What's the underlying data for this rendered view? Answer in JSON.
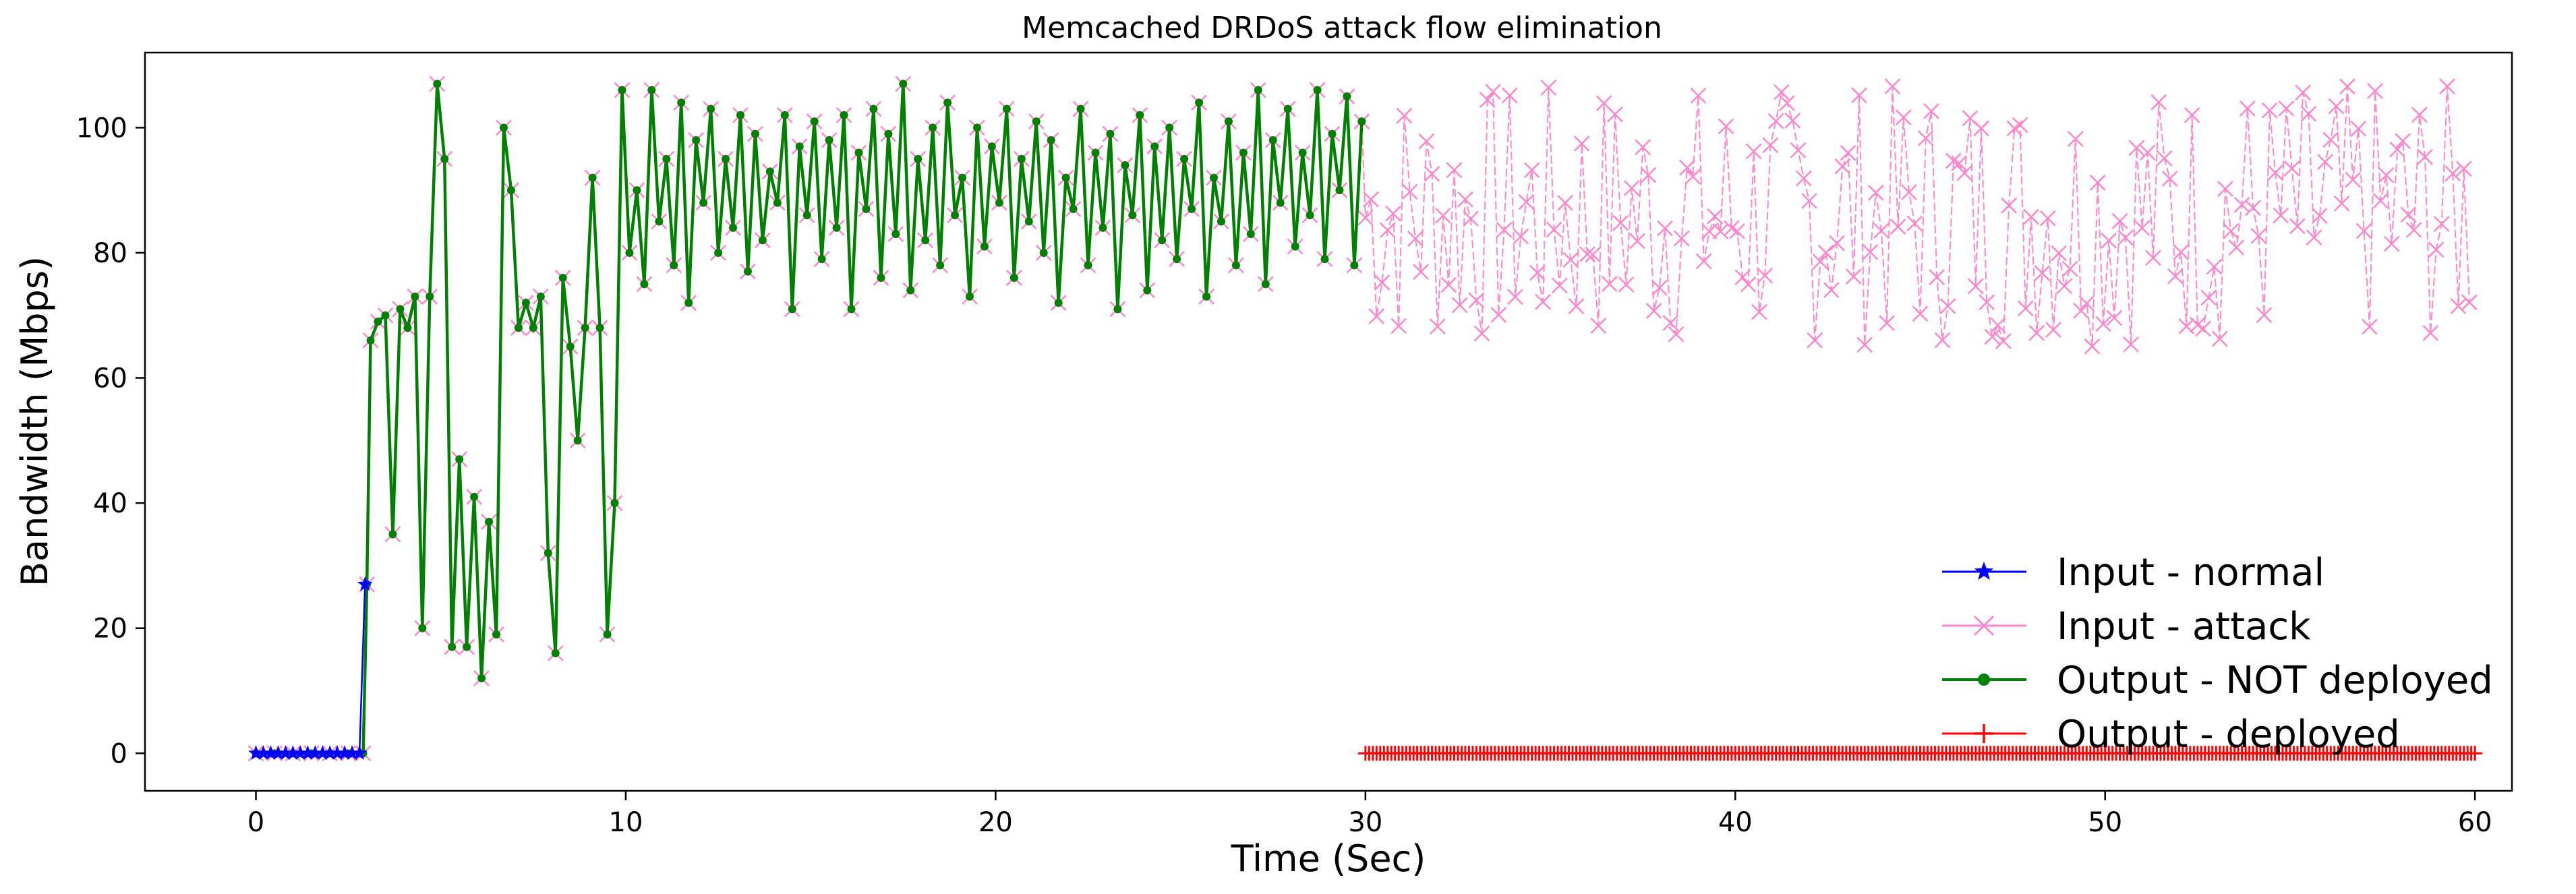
{
  "chart_data": {
    "type": "line",
    "title": "Memcached DRDoS attack flow elimination",
    "xlabel": "Time (Sec)",
    "ylabel": "Bandwidth (Mbps)",
    "xlim": [
      -3,
      61
    ],
    "ylim": [
      -6,
      112
    ],
    "xticks": [
      0,
      10,
      20,
      30,
      40,
      50,
      60
    ],
    "yticks": [
      0,
      20,
      40,
      60,
      80,
      100
    ],
    "legend_position": "lower-right",
    "series": [
      {
        "name": "Input - normal",
        "color": "#0000ff",
        "marker": "star",
        "description": "0 Mbps from t=0 to ~2.8 s, then a single point at ~27 Mbps at t=3",
        "points": [
          [
            0,
            0
          ],
          [
            0.2,
            0
          ],
          [
            0.4,
            0
          ],
          [
            0.6,
            0
          ],
          [
            0.8,
            0
          ],
          [
            1.0,
            0
          ],
          [
            1.2,
            0
          ],
          [
            1.4,
            0
          ],
          [
            1.6,
            0
          ],
          [
            1.8,
            0
          ],
          [
            2.0,
            0
          ],
          [
            2.2,
            0
          ],
          [
            2.4,
            0
          ],
          [
            2.6,
            0
          ],
          [
            2.8,
            0
          ],
          [
            2.95,
            27
          ]
        ]
      },
      {
        "name": "Input - attack",
        "color": "#ff88cc",
        "marker": "x",
        "description": "Attack input follows the output curve until 30 s, then fluctuates between ~65 and ~107 Mbps until 60 s",
        "range_after_30s": [
          65,
          107
        ]
      },
      {
        "name": "Output - NOT deployed",
        "color": "#008000",
        "marker": "dot",
        "description": "0 until ~3 s, jumps to ~68, oscillates 12–107 until 10 s, then fluctuates ~70–107 until 30 s",
        "points": [
          [
            0,
            0
          ],
          [
            0.5,
            0
          ],
          [
            1.0,
            0
          ],
          [
            1.5,
            0
          ],
          [
            2.0,
            0
          ],
          [
            2.5,
            0
          ],
          [
            2.9,
            0
          ],
          [
            3.0,
            27
          ],
          [
            3.1,
            66
          ],
          [
            3.3,
            69
          ],
          [
            3.5,
            70
          ],
          [
            3.7,
            35
          ],
          [
            3.9,
            71
          ],
          [
            4.1,
            68
          ],
          [
            4.3,
            73
          ],
          [
            4.5,
            20
          ],
          [
            4.7,
            73
          ],
          [
            4.9,
            107
          ],
          [
            5.1,
            95
          ],
          [
            5.3,
            17
          ],
          [
            5.5,
            47
          ],
          [
            5.7,
            17
          ],
          [
            5.9,
            41
          ],
          [
            6.1,
            12
          ],
          [
            6.3,
            37
          ],
          [
            6.5,
            19
          ],
          [
            6.7,
            100
          ],
          [
            6.9,
            90
          ],
          [
            7.1,
            68
          ],
          [
            7.3,
            72
          ],
          [
            7.5,
            68
          ],
          [
            7.7,
            73
          ],
          [
            7.9,
            32
          ],
          [
            8.1,
            16
          ],
          [
            8.3,
            76
          ],
          [
            8.5,
            65
          ],
          [
            8.7,
            50
          ],
          [
            8.9,
            68
          ],
          [
            9.1,
            92
          ],
          [
            9.3,
            68
          ],
          [
            9.5,
            19
          ],
          [
            9.7,
            40
          ],
          [
            9.9,
            106
          ],
          [
            10.1,
            80
          ],
          [
            10.3,
            90
          ],
          [
            10.5,
            75
          ],
          [
            10.7,
            106
          ],
          [
            10.9,
            85
          ],
          [
            11.1,
            95
          ],
          [
            11.3,
            78
          ],
          [
            11.5,
            104
          ],
          [
            11.7,
            72
          ],
          [
            11.9,
            98
          ],
          [
            12.1,
            88
          ],
          [
            12.3,
            103
          ],
          [
            12.5,
            80
          ],
          [
            12.7,
            95
          ],
          [
            12.9,
            84
          ],
          [
            13.1,
            102
          ],
          [
            13.3,
            77
          ],
          [
            13.5,
            99
          ],
          [
            13.7,
            82
          ],
          [
            13.9,
            93
          ],
          [
            14.1,
            88
          ],
          [
            14.3,
            102
          ],
          [
            14.5,
            71
          ],
          [
            14.7,
            97
          ],
          [
            14.9,
            86
          ],
          [
            15.1,
            101
          ],
          [
            15.3,
            79
          ],
          [
            15.5,
            98
          ],
          [
            15.7,
            84
          ],
          [
            15.9,
            102
          ],
          [
            16.1,
            71
          ],
          [
            16.3,
            96
          ],
          [
            16.5,
            87
          ],
          [
            16.7,
            103
          ],
          [
            16.9,
            76
          ],
          [
            17.1,
            99
          ],
          [
            17.3,
            83
          ],
          [
            17.5,
            107
          ],
          [
            17.7,
            74
          ],
          [
            17.9,
            95
          ],
          [
            18.1,
            82
          ],
          [
            18.3,
            100
          ],
          [
            18.5,
            78
          ],
          [
            18.7,
            104
          ],
          [
            18.9,
            86
          ],
          [
            19.1,
            92
          ],
          [
            19.3,
            73
          ],
          [
            19.5,
            100
          ],
          [
            19.7,
            81
          ],
          [
            19.9,
            97
          ],
          [
            20.1,
            88
          ],
          [
            20.3,
            103
          ],
          [
            20.5,
            76
          ],
          [
            20.7,
            95
          ],
          [
            20.9,
            85
          ],
          [
            21.1,
            101
          ],
          [
            21.3,
            80
          ],
          [
            21.5,
            98
          ],
          [
            21.7,
            72
          ],
          [
            21.9,
            92
          ],
          [
            22.1,
            87
          ],
          [
            22.3,
            103
          ],
          [
            22.5,
            78
          ],
          [
            22.7,
            96
          ],
          [
            22.9,
            84
          ],
          [
            23.1,
            99
          ],
          [
            23.3,
            71
          ],
          [
            23.5,
            94
          ],
          [
            23.7,
            86
          ],
          [
            23.9,
            102
          ],
          [
            24.1,
            74
          ],
          [
            24.3,
            97
          ],
          [
            24.5,
            82
          ],
          [
            24.7,
            100
          ],
          [
            24.9,
            79
          ],
          [
            25.1,
            95
          ],
          [
            25.3,
            87
          ],
          [
            25.5,
            104
          ],
          [
            25.7,
            73
          ],
          [
            25.9,
            92
          ],
          [
            26.1,
            85
          ],
          [
            26.3,
            101
          ],
          [
            26.5,
            78
          ],
          [
            26.7,
            96
          ],
          [
            26.9,
            83
          ],
          [
            27.1,
            106
          ],
          [
            27.3,
            75
          ],
          [
            27.5,
            98
          ],
          [
            27.7,
            88
          ],
          [
            27.9,
            103
          ],
          [
            28.1,
            81
          ],
          [
            28.3,
            96
          ],
          [
            28.5,
            86
          ],
          [
            28.7,
            106
          ],
          [
            28.9,
            79
          ],
          [
            29.1,
            99
          ],
          [
            29.3,
            90
          ],
          [
            29.5,
            105
          ],
          [
            29.7,
            78
          ],
          [
            29.9,
            101
          ]
        ]
      },
      {
        "name": "Output - deployed",
        "color": "#ff0000",
        "marker": "plus",
        "description": "Output stays at 0 Mbps from 30 s to 60 s after deployment",
        "points": [
          [
            30,
            0
          ],
          [
            60,
            0
          ]
        ]
      }
    ]
  }
}
